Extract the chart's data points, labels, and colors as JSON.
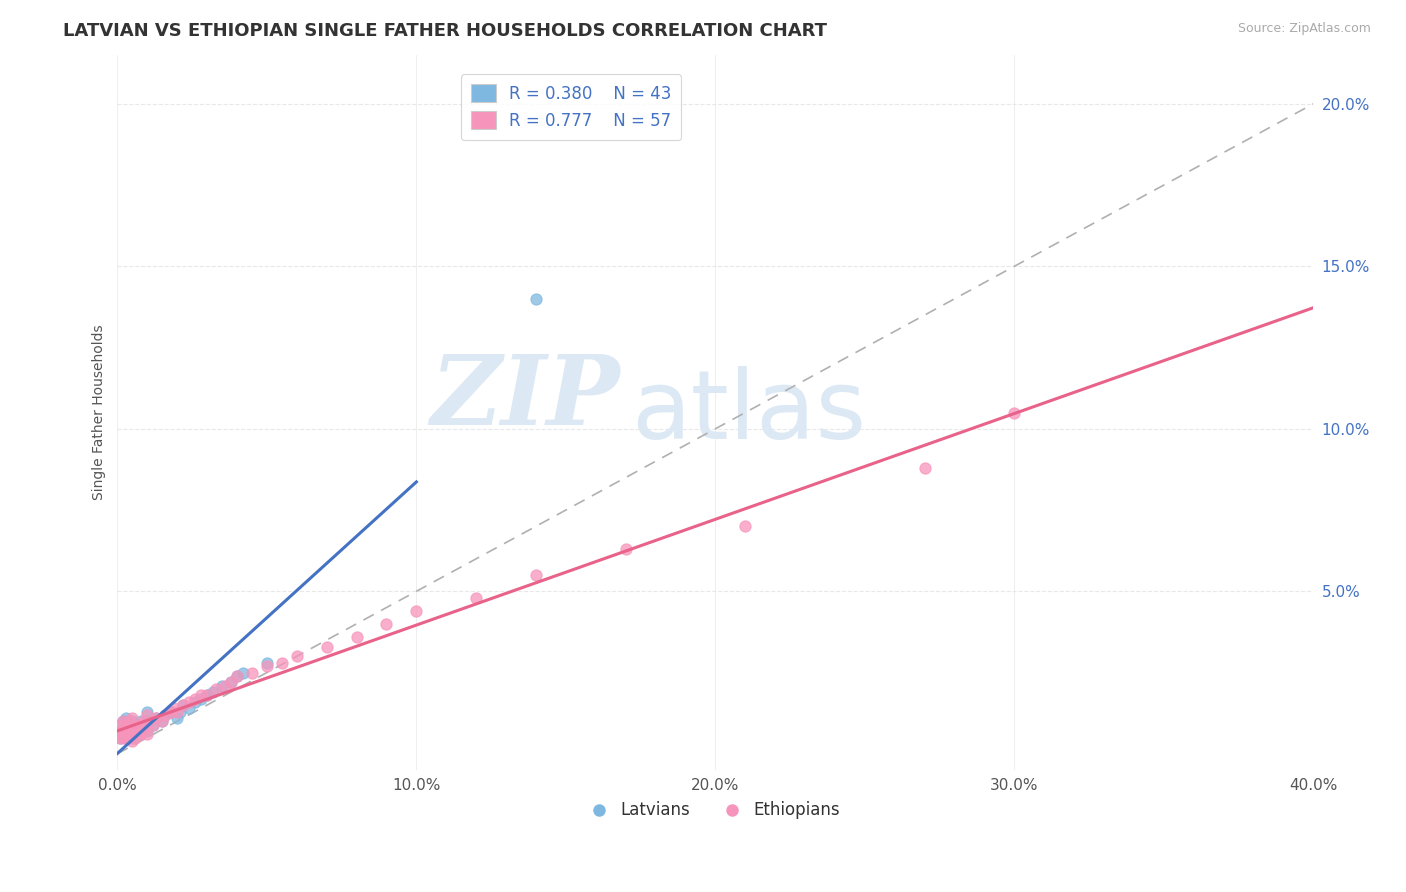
{
  "title": "LATVIAN VS ETHIOPIAN SINGLE FATHER HOUSEHOLDS CORRELATION CHART",
  "source_text": "Source: ZipAtlas.com",
  "ylabel": "Single Father Households",
  "xlim": [
    0.0,
    0.4
  ],
  "ylim": [
    -0.005,
    0.215
  ],
  "xtick_labels": [
    "0.0%",
    "10.0%",
    "20.0%",
    "30.0%",
    "40.0%"
  ],
  "xtick_vals": [
    0.0,
    0.1,
    0.2,
    0.3,
    0.4
  ],
  "ytick_labels": [
    "5.0%",
    "10.0%",
    "15.0%",
    "20.0%"
  ],
  "ytick_vals": [
    0.05,
    0.1,
    0.15,
    0.2
  ],
  "title_fontsize": 13,
  "axis_label_fontsize": 10,
  "tick_fontsize": 11,
  "legend_R_latvian": "R = 0.380",
  "legend_N_latvian": "N = 43",
  "legend_R_ethiopian": "R = 0.777",
  "legend_N_ethiopian": "N = 57",
  "latvian_color": "#7eb8e0",
  "ethiopian_color": "#f794bb",
  "latvian_line_color": "#4472c4",
  "ethiopian_line_color": "#e8628a",
  "trend_line_color": "#b0b0b0",
  "watermark_color": "#dce9f5",
  "background_color": "#ffffff",
  "grid_color": "#e8e8e8",
  "latvian_x": [
    0.001,
    0.001,
    0.002,
    0.002,
    0.002,
    0.003,
    0.003,
    0.003,
    0.003,
    0.004,
    0.004,
    0.005,
    0.005,
    0.005,
    0.006,
    0.006,
    0.007,
    0.007,
    0.008,
    0.008,
    0.009,
    0.01,
    0.01,
    0.01,
    0.012,
    0.013,
    0.015,
    0.016,
    0.018,
    0.02,
    0.021,
    0.022,
    0.024,
    0.026,
    0.028,
    0.03,
    0.032,
    0.035,
    0.038,
    0.04,
    0.042,
    0.05,
    0.14
  ],
  "latvian_y": [
    0.005,
    0.007,
    0.006,
    0.008,
    0.01,
    0.005,
    0.007,
    0.009,
    0.011,
    0.006,
    0.009,
    0.005,
    0.007,
    0.01,
    0.006,
    0.009,
    0.006,
    0.009,
    0.007,
    0.01,
    0.008,
    0.007,
    0.01,
    0.013,
    0.009,
    0.011,
    0.01,
    0.012,
    0.013,
    0.011,
    0.013,
    0.015,
    0.014,
    0.016,
    0.017,
    0.018,
    0.019,
    0.021,
    0.022,
    0.024,
    0.025,
    0.028,
    0.14
  ],
  "ethiopian_x": [
    0.001,
    0.001,
    0.001,
    0.002,
    0.002,
    0.002,
    0.003,
    0.003,
    0.003,
    0.004,
    0.004,
    0.004,
    0.005,
    0.005,
    0.005,
    0.005,
    0.006,
    0.006,
    0.007,
    0.007,
    0.008,
    0.008,
    0.009,
    0.009,
    0.01,
    0.01,
    0.01,
    0.012,
    0.013,
    0.015,
    0.016,
    0.018,
    0.019,
    0.02,
    0.022,
    0.024,
    0.026,
    0.028,
    0.03,
    0.033,
    0.036,
    0.038,
    0.04,
    0.045,
    0.05,
    0.055,
    0.06,
    0.07,
    0.08,
    0.09,
    0.1,
    0.12,
    0.14,
    0.17,
    0.21,
    0.27,
    0.3
  ],
  "ethiopian_y": [
    0.005,
    0.007,
    0.009,
    0.005,
    0.007,
    0.01,
    0.005,
    0.007,
    0.009,
    0.005,
    0.007,
    0.01,
    0.004,
    0.006,
    0.008,
    0.011,
    0.005,
    0.008,
    0.006,
    0.009,
    0.006,
    0.009,
    0.007,
    0.01,
    0.006,
    0.009,
    0.012,
    0.009,
    0.011,
    0.01,
    0.012,
    0.013,
    0.014,
    0.013,
    0.015,
    0.016,
    0.017,
    0.018,
    0.018,
    0.02,
    0.021,
    0.022,
    0.024,
    0.025,
    0.027,
    0.028,
    0.03,
    0.033,
    0.036,
    0.04,
    0.044,
    0.048,
    0.055,
    0.063,
    0.07,
    0.088,
    0.105
  ]
}
